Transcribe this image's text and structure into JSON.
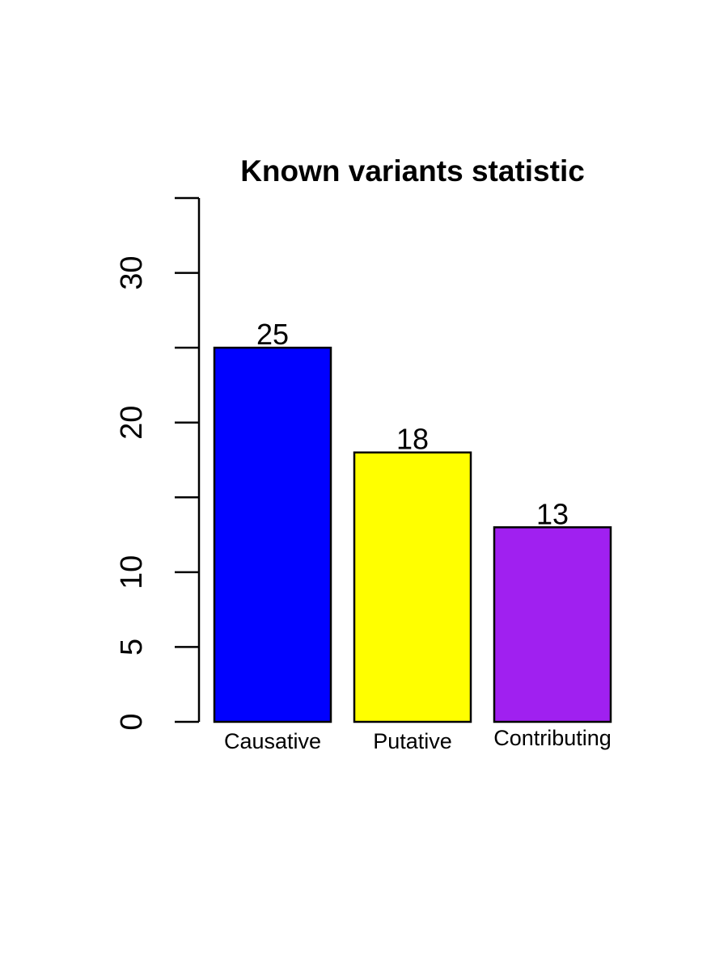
{
  "chart_data": {
    "type": "bar",
    "title": "Known variants statistic",
    "xlabel": "",
    "ylabel": "",
    "categories": [
      "Causative",
      "Putative",
      "Contributing"
    ],
    "values": [
      25,
      18,
      13
    ],
    "data_labels": [
      "25",
      "18",
      "13"
    ],
    "colors": [
      "#0000ff",
      "#ffff00",
      "#a020f0"
    ],
    "ylim": [
      0,
      35
    ],
    "y_ticks": [
      0,
      5,
      10,
      15,
      20,
      25,
      30,
      35
    ],
    "y_tick_labels": [
      "0",
      "5",
      "10",
      "",
      "20",
      "",
      "30",
      ""
    ],
    "grid": false,
    "legend": "none"
  }
}
